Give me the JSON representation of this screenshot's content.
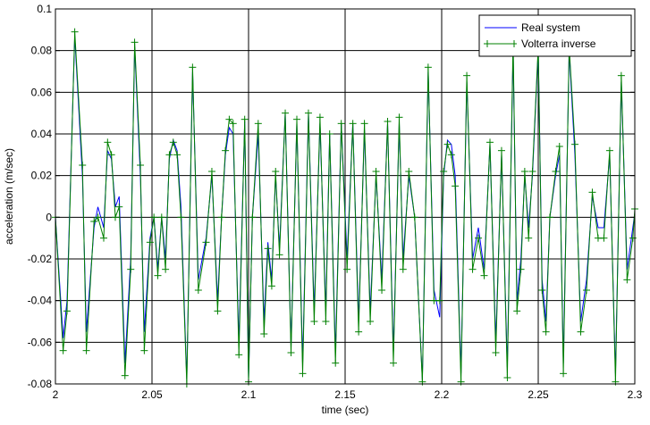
{
  "chart_data": {
    "type": "line",
    "title": "",
    "xlabel": "time (sec)",
    "ylabel": "acceleration (m/sec)",
    "xlim": [
      2.0,
      2.3
    ],
    "ylim": [
      -0.08,
      0.1
    ],
    "x_ticks": [
      2.0,
      2.05,
      2.1,
      2.15,
      2.2,
      2.25,
      2.3
    ],
    "x_tick_labels": [
      "2",
      "2.05",
      "2.1",
      "2.15",
      "2.2",
      "2.25",
      "2.3"
    ],
    "y_ticks": [
      -0.08,
      -0.06,
      -0.04,
      -0.02,
      0.0,
      0.02,
      0.04,
      0.06,
      0.08,
      0.1
    ],
    "y_tick_labels": [
      "-0.08",
      "-0.06",
      "-0.04",
      "-0.02",
      "0",
      "0.02",
      "0.04",
      "0.06",
      "0.08",
      "0.1"
    ],
    "grid": true,
    "legend_position": "top-right",
    "series": [
      {
        "name": "Real system",
        "color": "#0000ff",
        "marker": "none",
        "x": [
          2.0,
          2.004,
          2.006,
          2.01,
          2.014,
          2.016,
          2.02,
          2.022,
          2.025,
          2.027,
          2.029,
          2.031,
          2.033,
          2.036,
          2.039,
          2.041,
          2.044,
          2.046,
          2.049,
          2.051,
          2.053,
          2.055,
          2.057,
          2.059,
          2.061,
          2.063,
          2.065,
          2.068,
          2.071,
          2.074,
          2.078,
          2.081,
          2.084,
          2.086,
          2.088,
          2.09,
          2.092,
          2.095,
          2.098,
          2.1,
          2.102,
          2.105,
          2.108,
          2.11,
          2.112,
          2.114,
          2.116,
          2.119,
          2.122,
          2.125,
          2.128,
          2.131,
          2.134,
          2.137,
          2.14,
          2.142,
          2.145,
          2.148,
          2.151,
          2.154,
          2.157,
          2.16,
          2.163,
          2.166,
          2.169,
          2.172,
          2.175,
          2.178,
          2.18,
          2.183,
          2.186,
          2.19,
          2.193,
          2.196,
          2.199,
          2.201,
          2.203,
          2.205,
          2.207,
          2.21,
          2.213,
          2.216,
          2.219,
          2.222,
          2.225,
          2.228,
          2.231,
          2.234,
          2.237,
          2.239,
          2.241,
          2.243,
          2.245,
          2.247,
          2.25,
          2.252,
          2.254,
          2.256,
          2.259,
          2.261,
          2.263,
          2.266,
          2.269,
          2.272,
          2.275,
          2.278,
          2.281,
          2.284,
          2.287,
          2.29,
          2.293,
          2.296,
          2.299,
          2.3
        ],
        "y": [
          0.0,
          -0.058,
          -0.04,
          0.087,
          0.02,
          -0.055,
          -0.005,
          0.005,
          -0.005,
          0.032,
          0.028,
          0.005,
          0.01,
          -0.07,
          -0.02,
          0.082,
          0.02,
          -0.055,
          -0.01,
          0.0,
          -0.025,
          0.0,
          -0.02,
          0.028,
          0.037,
          0.032,
          0.005,
          -0.078,
          0.07,
          -0.03,
          -0.01,
          0.02,
          -0.04,
          0.0,
          0.03,
          0.043,
          0.04,
          -0.06,
          0.046,
          -0.078,
          0.0,
          0.04,
          -0.05,
          -0.012,
          -0.03,
          0.02,
          -0.015,
          0.05,
          -0.062,
          0.045,
          -0.07,
          0.05,
          -0.045,
          0.045,
          -0.045,
          0.04,
          -0.065,
          0.045,
          -0.02,
          0.045,
          -0.05,
          0.042,
          -0.045,
          0.02,
          -0.03,
          0.045,
          -0.065,
          0.045,
          -0.02,
          0.02,
          0.0,
          -0.078,
          0.07,
          -0.035,
          -0.048,
          0.02,
          0.037,
          0.035,
          0.02,
          -0.075,
          0.065,
          -0.02,
          -0.005,
          -0.025,
          0.035,
          -0.06,
          0.03,
          -0.072,
          0.08,
          -0.04,
          -0.02,
          0.02,
          -0.005,
          0.02,
          0.08,
          -0.03,
          -0.05,
          0.0,
          0.02,
          0.03,
          -0.07,
          0.08,
          0.03,
          -0.05,
          -0.03,
          0.01,
          -0.005,
          -0.005,
          0.03,
          -0.075,
          0.065,
          -0.025,
          -0.005,
          0.002
        ]
      },
      {
        "name": "Volterra inverse",
        "color": "#008000",
        "marker": "+",
        "x": [
          2.0,
          2.004,
          2.006,
          2.01,
          2.014,
          2.016,
          2.02,
          2.022,
          2.025,
          2.027,
          2.029,
          2.031,
          2.033,
          2.036,
          2.039,
          2.041,
          2.044,
          2.046,
          2.049,
          2.051,
          2.053,
          2.055,
          2.057,
          2.059,
          2.061,
          2.063,
          2.065,
          2.068,
          2.071,
          2.074,
          2.078,
          2.081,
          2.084,
          2.086,
          2.088,
          2.09,
          2.092,
          2.095,
          2.098,
          2.1,
          2.102,
          2.105,
          2.108,
          2.11,
          2.112,
          2.114,
          2.116,
          2.119,
          2.122,
          2.125,
          2.128,
          2.131,
          2.134,
          2.137,
          2.14,
          2.142,
          2.145,
          2.148,
          2.151,
          2.154,
          2.157,
          2.16,
          2.163,
          2.166,
          2.169,
          2.172,
          2.175,
          2.178,
          2.18,
          2.183,
          2.186,
          2.19,
          2.193,
          2.196,
          2.199,
          2.201,
          2.203,
          2.205,
          2.207,
          2.21,
          2.213,
          2.216,
          2.219,
          2.222,
          2.225,
          2.228,
          2.231,
          2.234,
          2.237,
          2.239,
          2.241,
          2.243,
          2.245,
          2.247,
          2.25,
          2.252,
          2.254,
          2.256,
          2.259,
          2.261,
          2.263,
          2.266,
          2.269,
          2.272,
          2.275,
          2.278,
          2.281,
          2.284,
          2.287,
          2.29,
          2.293,
          2.296,
          2.299,
          2.3
        ],
        "y": [
          0.0,
          -0.064,
          -0.045,
          0.089,
          0.025,
          -0.064,
          -0.002,
          0.0,
          -0.01,
          0.036,
          0.03,
          0.0,
          0.005,
          -0.076,
          -0.025,
          0.084,
          0.025,
          -0.064,
          -0.012,
          0.0,
          -0.028,
          0.0,
          -0.025,
          0.03,
          0.036,
          0.03,
          0.0,
          -0.08,
          0.072,
          -0.035,
          -0.012,
          0.022,
          -0.045,
          0.0,
          0.032,
          0.047,
          0.045,
          -0.066,
          0.047,
          -0.079,
          0.0,
          0.045,
          -0.056,
          -0.015,
          -0.033,
          0.022,
          -0.018,
          0.05,
          -0.065,
          0.047,
          -0.075,
          0.05,
          -0.05,
          0.048,
          -0.05,
          0.04,
          -0.07,
          0.045,
          -0.025,
          0.045,
          -0.055,
          0.045,
          -0.05,
          0.022,
          -0.035,
          0.046,
          -0.07,
          0.048,
          -0.025,
          0.022,
          0.0,
          -0.079,
          0.072,
          -0.04,
          -0.04,
          0.022,
          0.035,
          0.03,
          0.015,
          -0.079,
          0.068,
          -0.025,
          -0.01,
          -0.028,
          0.036,
          -0.065,
          0.032,
          -0.077,
          0.085,
          -0.045,
          -0.025,
          0.022,
          -0.01,
          0.022,
          0.082,
          -0.035,
          -0.055,
          0.0,
          0.022,
          0.034,
          -0.075,
          0.082,
          0.035,
          -0.055,
          -0.035,
          0.012,
          -0.01,
          -0.01,
          0.032,
          -0.079,
          0.068,
          -0.03,
          -0.01,
          0.004
        ]
      }
    ]
  }
}
